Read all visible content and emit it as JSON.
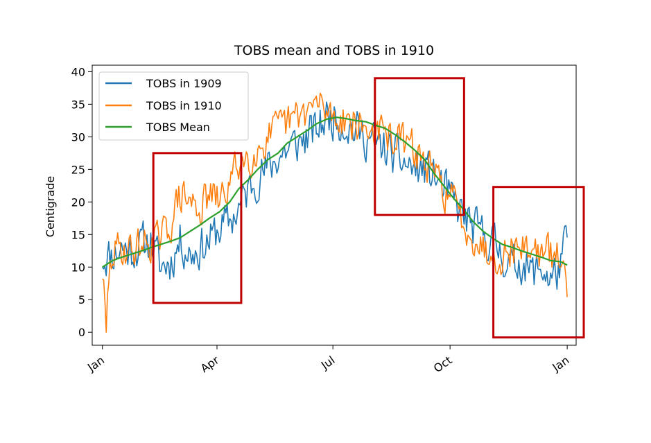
{
  "chart_data": {
    "type": "line",
    "title": "TOBS mean and TOBS in 1910",
    "ylabel": "Centigrade",
    "xlabel": "",
    "ylim": [
      -2,
      41
    ],
    "xlim": [
      -8,
      372
    ],
    "yticks": [
      0,
      5,
      10,
      15,
      20,
      25,
      30,
      35,
      40
    ],
    "xticks": [
      {
        "label": "Jan",
        "day": 0
      },
      {
        "label": "Apr",
        "day": 90
      },
      {
        "label": "Jul",
        "day": 181
      },
      {
        "label": "Oct",
        "day": 273
      },
      {
        "label": "Jan",
        "day": 365
      }
    ],
    "legend": {
      "placement": "upper-left"
    },
    "series": [
      {
        "name": "TOBS in 1909",
        "color": "#1f77b4",
        "anchor_days": [
          0,
          8,
          15,
          23,
          31,
          38,
          46,
          54,
          61,
          69,
          77,
          84,
          92,
          100,
          107,
          115,
          122,
          130,
          138,
          145,
          153,
          161,
          168,
          176,
          184,
          191,
          199,
          207,
          214,
          222,
          230,
          237,
          245,
          253,
          260,
          268,
          276,
          283,
          291,
          299,
          306,
          314,
          322,
          329,
          337,
          345,
          352,
          360,
          365
        ],
        "anchor_values": [
          11.5,
          12,
          13,
          12.5,
          13.5,
          14,
          10,
          11,
          14,
          12,
          13,
          14,
          16,
          17,
          19,
          22,
          24,
          25,
          27,
          28,
          29,
          30,
          31,
          33,
          33,
          32,
          31,
          30,
          29,
          28,
          27,
          26,
          25,
          25,
          24,
          22,
          20,
          18,
          16,
          15,
          14,
          12,
          10,
          11,
          9,
          10,
          8,
          10,
          15
        ],
        "noise_amp": 4.5,
        "seed": 11
      },
      {
        "name": "TOBS in 1910",
        "color": "#ff7f0e",
        "anchor_days": [
          0,
          3,
          5,
          8,
          15,
          23,
          31,
          38,
          46,
          54,
          61,
          69,
          77,
          84,
          92,
          100,
          107,
          115,
          122,
          130,
          138,
          145,
          153,
          161,
          168,
          176,
          184,
          191,
          199,
          207,
          214,
          222,
          230,
          237,
          245,
          253,
          260,
          268,
          276,
          283,
          291,
          299,
          306,
          314,
          322,
          329,
          337,
          345,
          352,
          360,
          365
        ],
        "anchor_values": [
          9.5,
          0,
          8,
          12,
          13,
          12.5,
          13.5,
          14,
          14,
          17,
          21,
          20,
          19,
          21,
          20,
          23,
          26,
          27,
          28,
          30,
          31,
          32,
          33,
          34,
          35,
          34,
          33,
          33,
          32,
          31,
          31,
          30,
          30,
          29,
          28,
          26,
          24,
          22,
          20,
          17,
          15,
          13,
          12,
          12,
          13,
          13,
          13,
          12,
          12,
          11,
          7
        ],
        "noise_amp": 4.0,
        "seed": 29
      },
      {
        "name": "TOBS Mean",
        "color": "#2ca02c",
        "days": [
          0,
          8,
          15,
          23,
          31,
          38,
          46,
          54,
          61,
          69,
          77,
          84,
          92,
          100,
          107,
          115,
          122,
          130,
          138,
          145,
          153,
          161,
          168,
          176,
          184,
          191,
          199,
          207,
          214,
          222,
          230,
          237,
          245,
          253,
          260,
          268,
          276,
          283,
          291,
          299,
          306,
          314,
          322,
          329,
          337,
          345,
          352,
          360,
          365
        ],
        "values": [
          10,
          11,
          11.5,
          12,
          12.5,
          13,
          13.5,
          14,
          14.5,
          15.5,
          16.5,
          17.5,
          18.5,
          20,
          22,
          23.5,
          25,
          26.5,
          27.5,
          29,
          30,
          31,
          32,
          32.7,
          33,
          32.8,
          32.5,
          32.3,
          31.8,
          31.3,
          30.3,
          29.3,
          28,
          26.5,
          24.5,
          22.5,
          20.5,
          19,
          17,
          15.5,
          14.5,
          13.5,
          13,
          12.5,
          12,
          11.5,
          11,
          10.8,
          10.3
        ]
      }
    ],
    "annotations": {
      "color": "#c00000",
      "boxes": [
        {
          "day_range": [
            40,
            109
          ],
          "value_range": [
            4.5,
            27.5
          ]
        },
        {
          "day_range": [
            214,
            284
          ],
          "value_range": [
            18,
            39
          ]
        },
        {
          "day_range": [
            307,
            378
          ],
          "value_range": [
            -0.8,
            22.3
          ]
        }
      ]
    }
  }
}
